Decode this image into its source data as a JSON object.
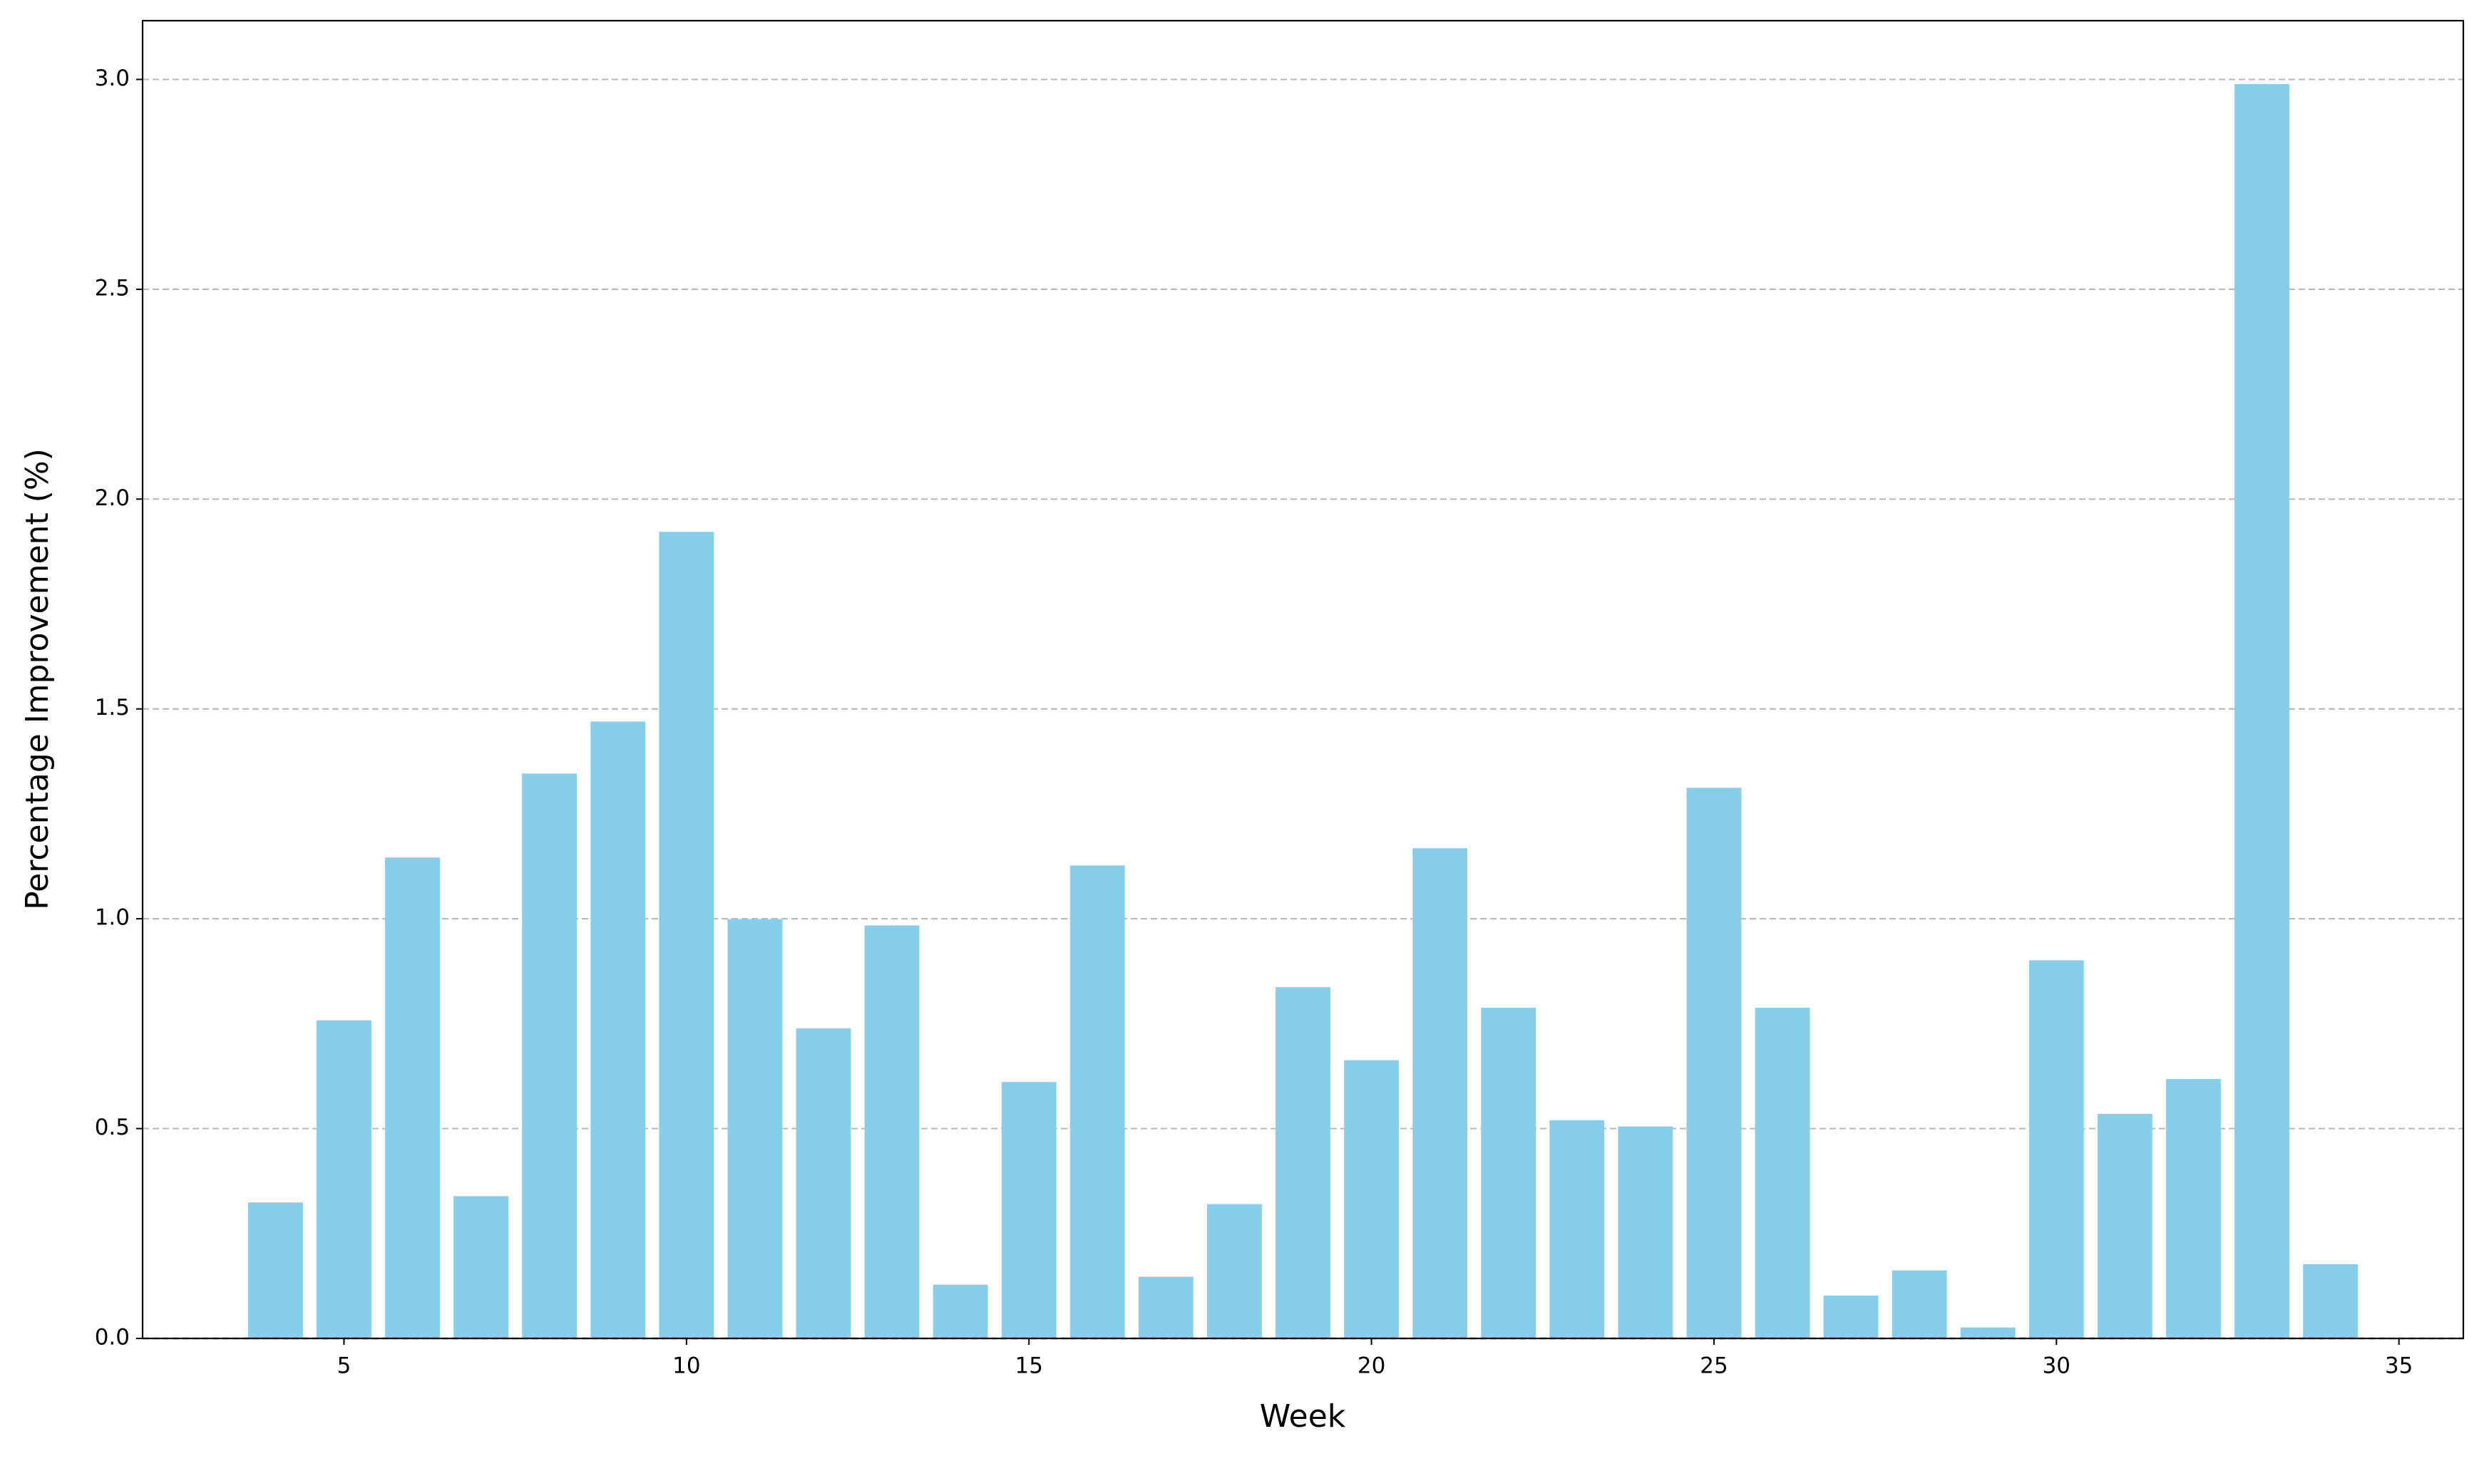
{
  "chart_data": {
    "type": "bar",
    "xlabel": "Week",
    "ylabel": "Percentage Improvement (%)",
    "x": [
      4,
      5,
      6,
      7,
      8,
      9,
      10,
      11,
      12,
      13,
      14,
      15,
      16,
      17,
      18,
      19,
      20,
      21,
      22,
      23,
      24,
      25,
      26,
      27,
      28,
      29,
      30,
      31,
      32,
      33,
      34
    ],
    "values": [
      0.324,
      0.758,
      1.146,
      0.339,
      1.346,
      1.47,
      1.922,
      0.999,
      0.739,
      0.984,
      0.128,
      0.611,
      1.127,
      0.147,
      0.32,
      0.837,
      0.663,
      1.168,
      0.788,
      0.52,
      0.505,
      1.312,
      0.788,
      0.102,
      0.162,
      0.026,
      0.901,
      0.535,
      0.618,
      2.989,
      0.177
    ],
    "color": "#87ceeb",
    "xlim": [
      2.06,
      35.94
    ],
    "xticks": [
      5,
      10,
      15,
      20,
      25,
      30,
      35
    ],
    "ylim": [
      0,
      3.14
    ],
    "yticks": [
      {
        "value": 0,
        "label": "0.0"
      },
      0.5,
      {
        "value": 1,
        "label": "1.0"
      },
      1.5,
      {
        "value": 2,
        "label": "2.0"
      },
      2.5,
      {
        "value": 3,
        "label": "3.0"
      }
    ],
    "grid": true,
    "hline": 0
  }
}
